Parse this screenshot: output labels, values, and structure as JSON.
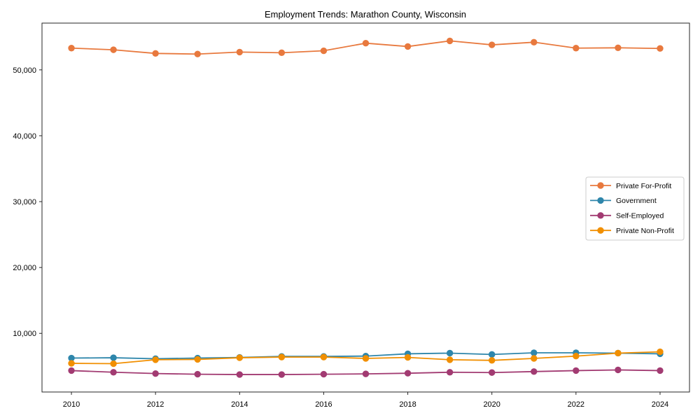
{
  "chart_data": {
    "type": "line",
    "title": "Employment Trends: Marathon County, Wisconsin",
    "xlabel": "",
    "ylabel": "",
    "grid": false,
    "legend_position": "center right",
    "marker": "o",
    "background": "#ffffff",
    "spine_color": "#262626",
    "legend_border_color": "#cccccc",
    "x": [
      2010,
      2011,
      2012,
      2013,
      2014,
      2015,
      2016,
      2017,
      2018,
      2019,
      2020,
      2021,
      2022,
      2023,
      2024
    ],
    "x_ticks": [
      2010,
      2012,
      2014,
      2016,
      2018,
      2020,
      2022,
      2024
    ],
    "y_ticks": [
      10000,
      20000,
      30000,
      40000,
      50000
    ],
    "y_tick_labels": [
      "10,000",
      "20,000",
      "30,000",
      "40,000",
      "50,000"
    ],
    "xlim": [
      2009.3,
      2024.7
    ],
    "ylim": [
      1100,
      57100
    ],
    "series": [
      {
        "name": "Private For-Profit",
        "color": "#E8793E",
        "values": [
          53300,
          53050,
          52500,
          52400,
          52700,
          52600,
          52900,
          54050,
          53550,
          54400,
          53800,
          54200,
          53300,
          53350,
          53250
        ]
      },
      {
        "name": "Government",
        "color": "#2E86AB",
        "values": [
          6250,
          6300,
          6150,
          6250,
          6350,
          6500,
          6500,
          6550,
          6900,
          7000,
          6800,
          7050,
          7050,
          7000,
          6900
        ]
      },
      {
        "name": "Self-Employed",
        "color": "#A23B72",
        "values": [
          4350,
          4100,
          3900,
          3800,
          3750,
          3750,
          3800,
          3850,
          3950,
          4100,
          4050,
          4200,
          4350,
          4450,
          4350
        ]
      },
      {
        "name": "Private Non-Profit",
        "color": "#F18F01",
        "values": [
          5450,
          5400,
          6000,
          6050,
          6300,
          6400,
          6400,
          6200,
          6350,
          6000,
          5900,
          6200,
          6550,
          7000,
          7200
        ]
      }
    ]
  }
}
